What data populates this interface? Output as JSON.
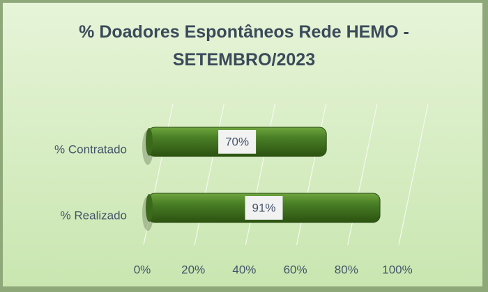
{
  "chart_data": {
    "type": "hbar",
    "title": "% Doadores Espontâneos Rede HEMO - SETEMBRO/2023",
    "categories": [
      "% Contratado",
      "% Realizado"
    ],
    "values": [
      70,
      91
    ],
    "value_labels": [
      "70%",
      "91%"
    ],
    "color": "#4a7f26",
    "xlim": [
      0,
      100
    ],
    "xticks": [
      {
        "value": 0,
        "label": "0%"
      },
      {
        "value": 20,
        "label": "20%"
      },
      {
        "value": 40,
        "label": "40%"
      },
      {
        "value": 60,
        "label": "60%"
      },
      {
        "value": 80,
        "label": "80%"
      },
      {
        "value": 100,
        "label": "100%"
      }
    ],
    "grid": true
  }
}
